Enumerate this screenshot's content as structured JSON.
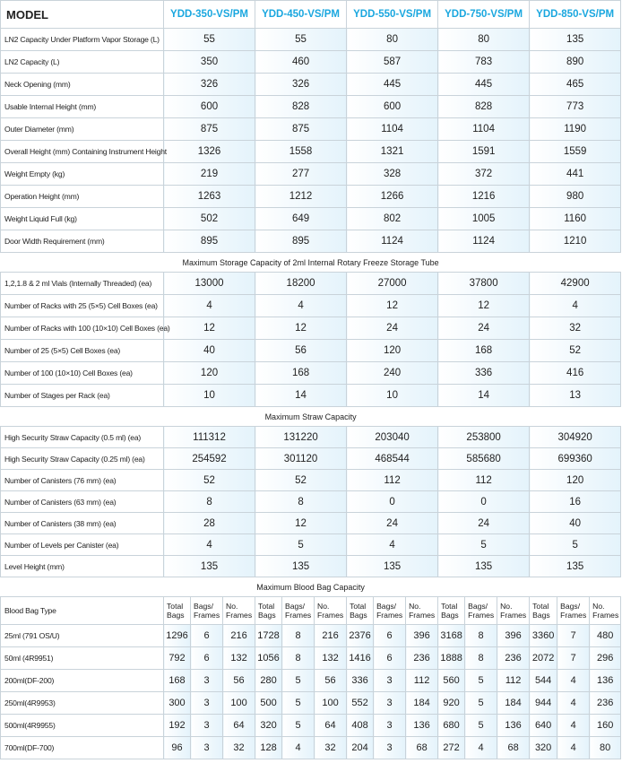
{
  "header": {
    "label": "MODEL",
    "models": [
      "YDD-350-VS/PM",
      "YDD-450-VS/PM",
      "YDD-550-VS/PM",
      "YDD-750-VS/PM",
      "YDD-850-VS/PM"
    ]
  },
  "sections": [
    {
      "rows": [
        {
          "label": "LN2 Capacity Under Platform Vapor Storage (L)",
          "values": [
            55,
            55,
            80,
            80,
            135
          ]
        },
        {
          "label": "LN2 Capacity (L)",
          "values": [
            350,
            460,
            587,
            783,
            890
          ]
        },
        {
          "label": "Neck Opening (mm)",
          "values": [
            326,
            326,
            445,
            445,
            465
          ]
        },
        {
          "label": "Usable Internal Height (mm)",
          "values": [
            600,
            828,
            600,
            828,
            773
          ]
        },
        {
          "label": "Outer Diameter (mm)",
          "values": [
            875,
            875,
            1104,
            1104,
            1190
          ]
        },
        {
          "label": "Overall Height (mm) Containing Instrument Height",
          "values": [
            1326,
            1558,
            1321,
            1591,
            1559
          ]
        },
        {
          "label": "Weight Empty (kg)",
          "values": [
            219,
            277,
            328,
            372,
            441
          ]
        },
        {
          "label": "Operation Height (mm)",
          "values": [
            1263,
            1212,
            1266,
            1216,
            980
          ]
        },
        {
          "label": "Weight Liquid Full (kg)",
          "values": [
            502,
            649,
            802,
            1005,
            1160
          ]
        },
        {
          "label": "Door Width Requirement (mm)",
          "values": [
            895,
            895,
            1124,
            1124,
            1210
          ]
        }
      ]
    },
    {
      "title": "Maximum Storage Capacity of 2ml Internal Rotary Freeze Storage Tube",
      "rows": [
        {
          "label": "1,2,1.8 & 2 ml Vials (Internally Threaded) (ea)",
          "values": [
            13000,
            18200,
            27000,
            37800,
            42900
          ]
        },
        {
          "label": "Number of Racks with 25 (5×5) Cell Boxes (ea)",
          "values": [
            4,
            4,
            12,
            12,
            4
          ]
        },
        {
          "label": "Number of Racks with 100 (10×10) Cell Boxes (ea)",
          "values": [
            12,
            12,
            24,
            24,
            32
          ]
        },
        {
          "label": "Number of 25 (5×5) Cell Boxes (ea)",
          "values": [
            40,
            56,
            120,
            168,
            52
          ]
        },
        {
          "label": "Number of 100 (10×10) Cell Boxes (ea)",
          "values": [
            120,
            168,
            240,
            336,
            416
          ]
        },
        {
          "label": "Number of Stages per Rack (ea)",
          "values": [
            10,
            14,
            10,
            14,
            13
          ]
        }
      ]
    },
    {
      "title": "Maximum Straw Capacity",
      "rows": [
        {
          "label": "High Security Straw Capacity (0.5 ml) (ea)",
          "values": [
            111312,
            131220,
            203040,
            253800,
            304920
          ]
        },
        {
          "label": "High Security Straw Capacity (0.25 ml) (ea)",
          "values": [
            254592,
            301120,
            468544,
            585680,
            699360
          ]
        },
        {
          "label": "Number of Canisters (76 mm) (ea)",
          "values": [
            52,
            52,
            112,
            112,
            120
          ]
        },
        {
          "label": "Number of Canisters (63 mm) (ea)",
          "values": [
            8,
            8,
            0,
            0,
            16
          ]
        },
        {
          "label": "Number of Canisters (38 mm) (ea)",
          "values": [
            28,
            12,
            24,
            24,
            40
          ]
        },
        {
          "label": "Number of Levels per Canister (ea)",
          "values": [
            4,
            5,
            4,
            5,
            5
          ]
        },
        {
          "label": "Level Height (mm)",
          "values": [
            135,
            135,
            135,
            135,
            135
          ]
        }
      ]
    }
  ],
  "blood_bag": {
    "title": "Maximum Blood Bag Capacity",
    "type_label": "Blood Bag Type",
    "subheaders": [
      "Total Bags",
      "Bags/ Frames",
      "No. Frames"
    ],
    "rows": [
      {
        "label": "25ml (791 OS/U)",
        "values": [
          1296,
          6,
          216,
          1728,
          8,
          216,
          2376,
          6,
          396,
          3168,
          8,
          396,
          3360,
          7,
          480
        ]
      },
      {
        "label": "50ml (4R9951)",
        "values": [
          792,
          6,
          132,
          1056,
          8,
          132,
          1416,
          6,
          236,
          1888,
          8,
          236,
          2072,
          7,
          296
        ]
      },
      {
        "label": "200ml(DF-200)",
        "values": [
          168,
          3,
          56,
          280,
          5,
          56,
          336,
          3,
          112,
          560,
          5,
          112,
          544,
          4,
          136
        ]
      },
      {
        "label": "250ml(4R9953)",
        "values": [
          300,
          3,
          100,
          500,
          5,
          100,
          552,
          3,
          184,
          920,
          5,
          184,
          944,
          4,
          236
        ]
      },
      {
        "label": "500ml(4R9955)",
        "values": [
          192,
          3,
          64,
          320,
          5,
          64,
          408,
          3,
          136,
          680,
          5,
          136,
          640,
          4,
          160
        ]
      },
      {
        "label": "700ml(DF-700)",
        "values": [
          96,
          3,
          32,
          128,
          4,
          32,
          204,
          3,
          68,
          272,
          4,
          68,
          320,
          4,
          80
        ]
      }
    ]
  }
}
